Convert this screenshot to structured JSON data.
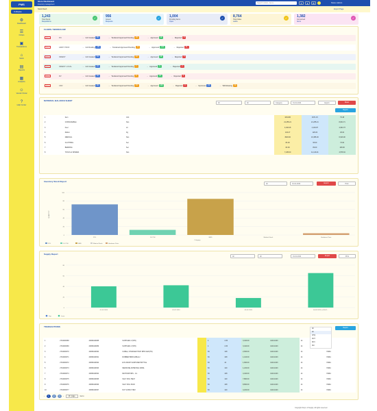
{
  "app": {
    "name": "PMS",
    "folder_label": "Collapse",
    "title": "Store Dashboard",
    "subtitle": "Inventory management"
  },
  "nav": [
    {
      "icon": "gear-icon",
      "label": "Dashboard"
    },
    {
      "icon": "cart-icon",
      "label": "Orders"
    },
    {
      "icon": "box-icon",
      "label": "Transactions"
    },
    {
      "icon": "bank-icon",
      "label": "Stock"
    },
    {
      "icon": "document-icon",
      "label": "Reports"
    },
    {
      "icon": "report-icon",
      "label": "Analytics"
    },
    {
      "icon": "user-icon",
      "label": "Vendor Portal"
    },
    {
      "icon": "help-icon",
      "label": "Help Center"
    }
  ],
  "topbar": {
    "search_placeholder": "Search orders, items...",
    "user_name": "Store Admin"
  },
  "breadcrumb": {
    "left": "Stock Dash",
    "right": "Export Page"
  },
  "stats": [
    {
      "value": "1,243",
      "label": "Total Stock",
      "sub": "Requisitions",
      "color": "#48c774",
      "bg": "#e6f7ea"
    },
    {
      "value": "956",
      "label": "Issued",
      "sub": "Requests",
      "color": "#29a4e0",
      "bg": "#e4f3fb"
    },
    {
      "value": "1,004",
      "label": "Pending Items",
      "sub": "Open",
      "color": "#1e4fae",
      "bg": "#e8ecf7"
    },
    {
      "value": "8,764",
      "label": "Total Value",
      "sub": "Lakhs",
      "color": "#f0c419",
      "bg": "#fdf5d6"
    },
    {
      "value": "1,382",
      "label": "Consumed",
      "sub": "Items",
      "color": "#e055b5",
      "bg": "#fbe4f3"
    }
  ],
  "flow": {
    "title": "FLOWS / WORKFLOW",
    "rows": [
      {
        "id": "PO-1",
        "name": "PO",
        "steps": [
          {
            "t": "Ind Created",
            "n": "96",
            "c": "#4a7bd4"
          },
          {
            "t": "Tendered Approved Pending",
            "n": "25",
            "c": "#f0a020"
          },
          {
            "t": "Approved",
            "n": "12",
            "c": "#48c774"
          },
          {
            "t": "Rejected",
            "n": "8",
            "c": "#e04848"
          }
        ],
        "bg": "#fdeeee"
      },
      {
        "id": "PO-2",
        "name": "ARMY PROF",
        "steps": [
          {
            "t": "Ind Pending",
            "n": "131",
            "c": "#4a7bd4"
          },
          {
            "t": "Tendered Approved Pending",
            "n": "12",
            "c": "#f0a020"
          },
          {
            "t": "Approved",
            "n": "110",
            "c": "#48c774"
          },
          {
            "t": "Rejected",
            "n": "21",
            "c": "#e04848"
          }
        ],
        "bg": "#ffffff"
      },
      {
        "id": "PO-3",
        "name": "INDENT",
        "steps": [
          {
            "t": "Ind Created",
            "n": "64",
            "c": "#4a7bd4"
          },
          {
            "t": "Tendered Approved Pending",
            "n": "10",
            "c": "#f0a020"
          },
          {
            "t": "Approved",
            "n": "49",
            "c": "#48c774"
          },
          {
            "t": "Rejected",
            "n": "5",
            "c": "#e04848"
          }
        ],
        "bg": "#eef2fb"
      },
      {
        "id": "PO-4",
        "name": "INDENT LOCAL",
        "steps": [
          {
            "t": "Ind Created",
            "n": "18",
            "c": "#4a7bd4"
          },
          {
            "t": "Tendered Approved Pending",
            "n": "7",
            "c": "#f0a020"
          },
          {
            "t": "Approved",
            "n": "9",
            "c": "#48c774"
          },
          {
            "t": "Rejected",
            "n": "2",
            "c": "#e04848"
          }
        ],
        "bg": "#e6f6f1"
      },
      {
        "id": "PO-5",
        "name": "RV",
        "steps": [
          {
            "t": "Ind Created",
            "n": "32",
            "c": "#4a7bd4"
          },
          {
            "t": "Tendered Approved Pending",
            "n": "8",
            "c": "#f0a020"
          },
          {
            "t": "Approved",
            "n": "20",
            "c": "#48c774"
          },
          {
            "t": "Rejected",
            "n": "4",
            "c": "#e04848"
          }
        ],
        "bg": "#fdeeee"
      },
      {
        "id": "PO-6",
        "name": "CRV",
        "steps": [
          {
            "t": "Ind Created",
            "n": "40",
            "c": "#4a7bd4"
          },
          {
            "t": "Tendered Approved Pending",
            "n": "15",
            "c": "#f0a020"
          },
          {
            "t": "Approved",
            "n": "116",
            "c": "#48c774"
          },
          {
            "t": "Rejected",
            "n": "3",
            "c": "#e04848"
          },
          {
            "t": "Inprocess",
            "n": "21",
            "c": "#4a7bd4"
          },
          {
            "t": "Withdrawing",
            "n": "11",
            "c": "#f0a020"
          }
        ],
        "bg": "#fdf7e6"
      }
    ]
  },
  "material": {
    "title": "MATERIAL BALANCE SHEET",
    "filters": [
      "All",
      "All",
      "Category",
      "01-01-2024"
    ],
    "btn_export": "Export",
    "btn_reset": "Reset",
    "btn_report": "Report",
    "rows": [
      [
        "1",
        "Item",
        "Unit",
        "1034.86",
        "4971.15",
        "79.48"
      ],
      [
        "2",
        "CONSUMABLE",
        "Nos",
        "21,255.21",
        "21,255.21",
        "8,844.71"
      ],
      [
        "3",
        "Fuel",
        "Ltr",
        "4,043.28",
        "4,194.87",
        "4,094.73"
      ],
      [
        "4",
        "Ration",
        "Kg",
        "104.27",
        "128.20",
        "29.04"
      ],
      [
        "5",
        "MEDICAL",
        "Nos",
        "4520.00",
        "16,386.00",
        "6,916.00"
      ],
      [
        "6",
        "CLOTHING",
        "Set",
        "84.00",
        "95.00",
        "73.00"
      ],
      [
        "7",
        "BEDDING",
        "Set",
        "82.00",
        "89.00",
        "108.00"
      ],
      [
        "8",
        "TOOLS & SPARES",
        "Nos",
        "7,245.00",
        "11,149.21",
        "4,578.34"
      ]
    ]
  },
  "inventory": {
    "title": "Inventory Stock Report",
    "filter": "All",
    "date": "01-01-2024",
    "btn_export": "Export",
    "btn_print": "Print",
    "ylabel": "QUANTITY",
    "xlabel": "Category",
    "legend": [
      "POL",
      "CLOTH",
      "MED",
      "Medical Stock",
      "Hardware Parts"
    ]
  },
  "supply": {
    "title": "Supply Report",
    "filters": [
      "All",
      "All",
      "01-01-2024"
    ],
    "btn_export": "Export",
    "btn_print": "Print",
    "legend": [
      "Sup",
      "Issue"
    ]
  },
  "txn": {
    "title": "TRANSACTIONS",
    "btn_report": "Report",
    "dropdown": [
      "All",
      "All",
      "CHQ",
      "NOT",
      "RCV",
      "ISU"
    ],
    "rows": [
      [
        "1",
        "2724000068",
        "40069440088",
        "SUPPLIES 4 (5X5)",
        "",
        "4",
        "4.30",
        "3,410.00",
        "4113-1023",
        "14",
        "INDIA"
      ],
      [
        "2",
        "2724000069",
        "40069440089",
        "SUPPLIES 4 (5X5)",
        "",
        "4",
        "4.30",
        "3,410.00",
        "4113-1023",
        "14",
        "INDIA"
      ],
      [
        "3",
        "2724000070",
        "40069440090",
        "CABLE, CHARGER HIGH RPD GEN(TN)",
        "",
        "84",
        "128",
        "2,630.00",
        "4113-1023",
        "14",
        "INDIA"
      ],
      [
        "4",
        "2724000071",
        "40069440091",
        "RUBBER BRD/CABLE 2",
        "",
        "84",
        "108",
        "1,140.00",
        "4113-1023",
        "14",
        "INDIA"
      ],
      [
        "5",
        "2724000072",
        "40069440092",
        "EYE WASH SANITIZER BOTTLE",
        "",
        "84",
        "44",
        "1,840.00",
        "4113-1023",
        "14",
        "INDIA"
      ],
      [
        "6",
        "2724000073",
        "40069440093",
        "MEDICINE ADHESIVE 100ML",
        "",
        "84",
        "120",
        "1,210.00",
        "4113-1023",
        "14",
        "INDIA"
      ],
      [
        "7",
        "2724000074",
        "40069440094",
        "DETONATORS - 1/L",
        "",
        "84",
        "108",
        "4,410.00",
        "4113-1023",
        "14",
        "INDIA"
      ],
      [
        "8",
        "2724000075",
        "40069440095",
        "SALT FOIL HEAT",
        "",
        "84",
        "120",
        "7,800.00",
        "4113-1023",
        "14",
        "INDIA"
      ],
      [
        "9",
        "2724000076",
        "40069440096",
        "SALT FOIL PACK",
        "",
        "84",
        "108",
        "8,660.00",
        "4113-1023",
        "14",
        "INDIA"
      ],
      [
        "10",
        "2724000077",
        "40069440097",
        "NUT & BOLT-HEX",
        "",
        "84",
        "120",
        "4,210.00",
        "4113-1023",
        "14",
        "INDIA"
      ]
    ],
    "pages": [
      "1",
      "2",
      "3"
    ],
    "pagesize": "10 / page",
    "goto": "Go to"
  },
  "footer": "Copyright Dept. of Supply. All rights reserved",
  "chart_data": [
    {
      "type": "bar",
      "title": "Inventory Stock Report",
      "xlabel": "Category",
      "ylabel": "QUANTITY",
      "categories": [
        "POL",
        "CLOTH",
        "MED",
        "Medical Stock",
        "Hardware Parts"
      ],
      "series": [
        {
          "values": [
            72,
            12,
            85,
            0,
            4
          ]
        }
      ],
      "ylim": [
        0,
        100
      ]
    },
    {
      "type": "bar",
      "title": "Supply Report",
      "categories": [
        "01-02-2024",
        "02-02-2024",
        "03-02-2024",
        "04-02-2024 to 09-02..."
      ],
      "series": [
        {
          "values": [
            40,
            42,
            18,
            65
          ]
        }
      ],
      "ylim": [
        0,
        80
      ]
    }
  ]
}
